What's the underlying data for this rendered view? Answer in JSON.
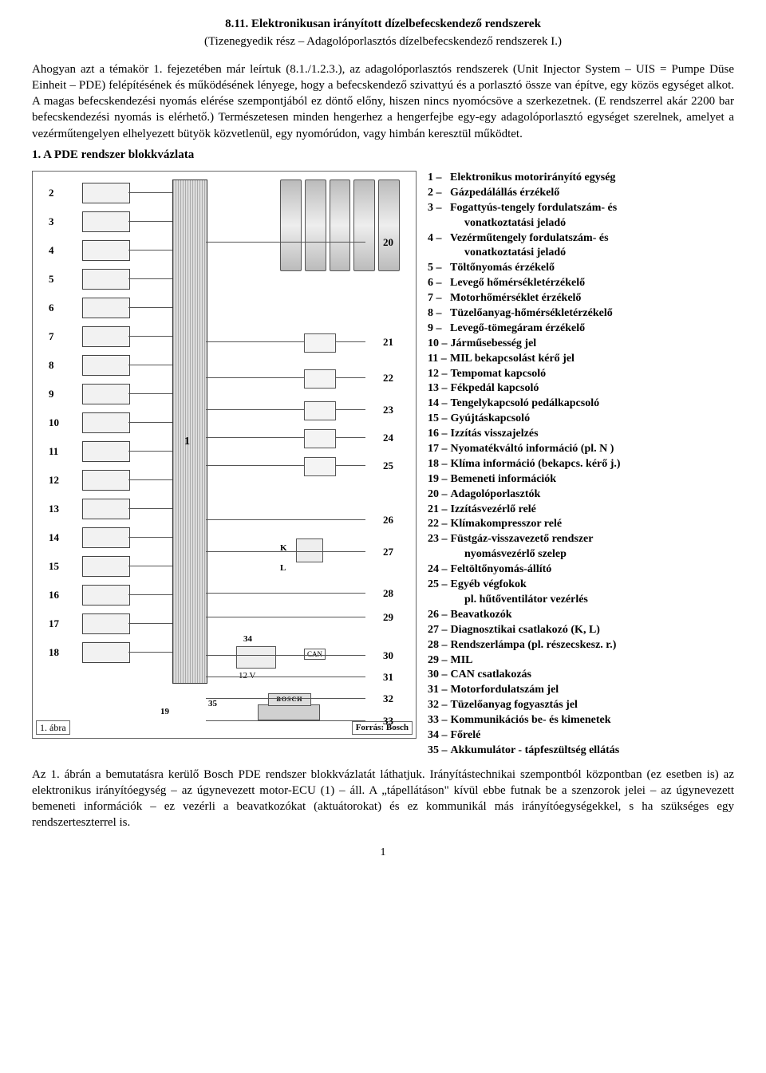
{
  "heading": "8.11. Elektronikusan irányított dízelbefecskendező rendszerek",
  "subheading": "(Tizenegyedik rész – Adagolóporlasztós dízelbefecskendező rendszerek I.)",
  "para1": "Ahogyan azt a témakör 1. fejezetében már leírtuk (8.1./1.2.3.), az adagolóporlasztós rendszerek (Unit Injector System – UIS = Pumpe Düse Einheit – PDE) felépítésének és működésének lényege, hogy a befecskendező szivattyú és a porlasztó össze van építve, egy közös egységet alkot. A magas befecskendezési nyomás elérése szempontjából ez döntő előny, hiszen nincs nyomócsöve a szerkezetnek. (E rendszerrel akár 2200 bar befecskendezési nyomás is elérhető.) Természetesen minden hengerhez a hengerfejbe egy-egy adagolóporlasztó egységet szerelnek, amelyet a vezérműtengelyen elhelyezett bütyök közvetlenül, egy nyomórúdon, vagy himbán keresztül működtet.",
  "section1": "1. A PDE rendszer blokkvázlata",
  "fig_caption_left": "1. ábra",
  "fig_caption_right": "Forrás: Bosch",
  "ecu_num": "1",
  "labels": {
    "batt_v": "12 V",
    "lbl_34": "34",
    "lbl_35": "35",
    "lbl_19": "19",
    "lbl_can": "CAN",
    "lbl_k": "K",
    "lbl_l": "L",
    "bosch": "BOSCH"
  },
  "left_nums": [
    "2",
    "3",
    "4",
    "5",
    "6",
    "7",
    "8",
    "9",
    "10",
    "11",
    "12",
    "13",
    "14",
    "15",
    "16",
    "17",
    "18"
  ],
  "right_nums": [
    "20",
    "21",
    "22",
    "23",
    "24",
    "25",
    "26",
    "27",
    "28",
    "29",
    "30",
    "31",
    "32",
    "33"
  ],
  "legend": [
    {
      "n": "1",
      "t": "Elektronikus motorirányító egység"
    },
    {
      "n": "2",
      "t": "Gázpedálállás érzékelő"
    },
    {
      "n": "3",
      "t": "Fogattyús-tengely fordulatszám- és",
      "sub": "vonatkoztatási jeladó"
    },
    {
      "n": "4",
      "t": "Vezérműtengely fordulatszám- és",
      "sub": "vonatkoztatási jeladó"
    },
    {
      "n": "5",
      "t": "Töltőnyomás érzékelő"
    },
    {
      "n": "6",
      "t": "Levegő hőmérsékletérzékelő"
    },
    {
      "n": "7",
      "t": "Motorhőmérséklet érzékelő"
    },
    {
      "n": "8",
      "t": "Tüzelőanyag-hőmérsékletérzékelő"
    },
    {
      "n": "9",
      "t": "Levegő-tömegáram érzékelő"
    },
    {
      "n": "10",
      "t": "Járműsebesség jel"
    },
    {
      "n": "11",
      "t": "MIL bekapcsolást kérő jel"
    },
    {
      "n": "12",
      "t": "Tempomat kapcsoló"
    },
    {
      "n": "13",
      "t": "Fékpedál kapcsoló"
    },
    {
      "n": "14",
      "t": "Tengelykapcsoló pedálkapcsoló"
    },
    {
      "n": "15",
      "t": "Gyújtáskapcsoló"
    },
    {
      "n": "16",
      "t": "Izzítás visszajelzés"
    },
    {
      "n": "17",
      "t": "Nyomatékváltó információ (pl. N )"
    },
    {
      "n": "18",
      "t": "Klíma információ (bekapcs. kérő j.)"
    },
    {
      "n": "19",
      "t": "Bemeneti információk"
    },
    {
      "n": "20",
      "t": "Adagolóporlasztók"
    },
    {
      "n": "21",
      "t": "Izzításvezérlő relé"
    },
    {
      "n": "22",
      "t": "Klímakompresszor relé"
    },
    {
      "n": "23",
      "t": "Füstgáz-visszavezető rendszer",
      "sub": "nyomásvezérlő szelep"
    },
    {
      "n": "24",
      "t": "Feltöltőnyomás-állító"
    },
    {
      "n": "25",
      "t": "Egyéb végfokok",
      "sub": "pl. hűtőventilátor vezérlés"
    },
    {
      "n": "26",
      "t": "Beavatkozók"
    },
    {
      "n": "27",
      "t": "Diagnosztikai csatlakozó (K, L)"
    },
    {
      "n": "28",
      "t": "Rendszerlámpa (pl. részecskesz. r.)"
    },
    {
      "n": "29",
      "t": "MIL"
    },
    {
      "n": "30",
      "t": "CAN csatlakozás"
    },
    {
      "n": "31",
      "t": "Motorfordulatszám jel"
    },
    {
      "n": "32",
      "t": "Tüzelőanyag fogyasztás jel"
    },
    {
      "n": "33",
      "t": "Kommunikációs be- és kimenetek"
    },
    {
      "n": "34",
      "t": "Főrelé"
    },
    {
      "n": "35",
      "t": "Akkumulátor - tápfeszültség ellátás"
    }
  ],
  "para2": "Az 1. ábrán a bemutatásra kerülő Bosch PDE rendszer blokkvázlatát láthatjuk. Irányítástechnikai szempontból központban (ez esetben is) az elektronikus irányítóegység – az úgynevezett motor-ECU (1) – áll. A „tápellátáson\" kívül ebbe futnak be a szenzorok jelei – az úgynevezett bemeneti információk – ez vezérli a beavatkozókat (aktuátorokat) és ez kommunikál más irányítóegységekkel, s ha szükséges egy rendszerteszterrel is.",
  "pagenum": "1"
}
